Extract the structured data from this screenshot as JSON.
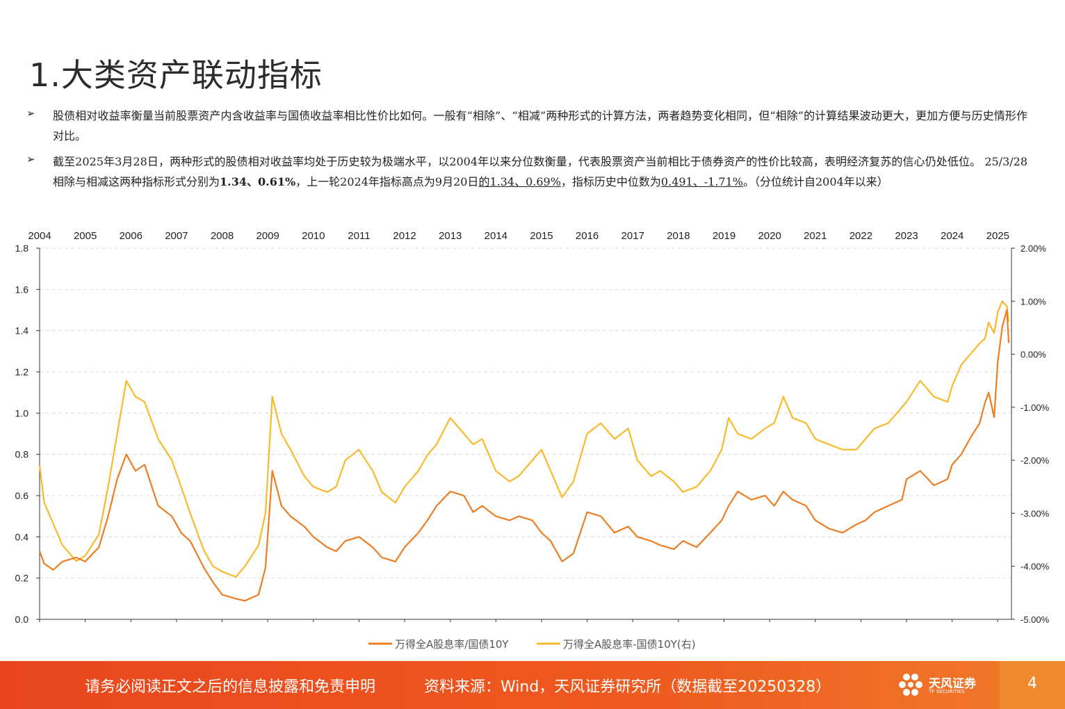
{
  "page": {
    "title": "1.大类资产联动指标",
    "bullets": [
      {
        "segments": [
          {
            "text": "股债相对收益率衡量当前股票资产内含收益率与国债收益率相比性价比如何。一般有“相除”、“相减”两种形式的计算方法，两者趋势变化相同，但“相除”的计算结果波动更大，更加方便与历史情形作对比。",
            "style": "normal"
          }
        ]
      },
      {
        "segments": [
          {
            "text": "截至2025年3月28日，两种形式的股债相对收益率均处于历史较为极端水平，以2004年以来分位数衡量，代表股票资产当前相比于债券资产的性价比较高，表明经济复苏的信心仍处低位。 25/3/28相除与相减这两种指标形式分别为",
            "style": "normal"
          },
          {
            "text": "1.34、0.61%",
            "style": "bold"
          },
          {
            "text": "，上一轮2024年指标高点为9月20日",
            "style": "normal"
          },
          {
            "text": "的1.34、0.69%",
            "style": "underline"
          },
          {
            "text": "，指标历史中位数为",
            "style": "normal"
          },
          {
            "text": "0.491、-1.71%",
            "style": "underline"
          },
          {
            "text": "。（分位统计自2004年以来）",
            "style": "normal"
          }
        ]
      }
    ]
  },
  "chart_data": {
    "type": "line",
    "x_ticks": [
      "2004",
      "2005",
      "2006",
      "2007",
      "2008",
      "2009",
      "2010",
      "2011",
      "2012",
      "2013",
      "2014",
      "2015",
      "2016",
      "2017",
      "2018",
      "2019",
      "2020",
      "2021",
      "2022",
      "2023",
      "2024",
      "2025"
    ],
    "xlim": [
      2004.0,
      2025.3
    ],
    "y_left": {
      "ticks": [
        "0.0",
        "0.2",
        "0.4",
        "0.6",
        "0.8",
        "1.0",
        "1.2",
        "1.4",
        "1.6",
        "1.8"
      ],
      "ylim": [
        0,
        1.8
      ]
    },
    "y_right": {
      "ticks": [
        "2.00%",
        "1.00%",
        "0.00%",
        "-1.00%",
        "-2.00%",
        "-3.00%",
        "-4.00%",
        "-5.00%"
      ],
      "ylim": [
        -5,
        2
      ]
    },
    "grid": "horizontal-dashed",
    "legend_position": "bottom",
    "series": [
      {
        "name": "万得全A股息率/国债10Y",
        "axis": "left",
        "color": "#ee7d22",
        "x": [
          2004.0,
          2004.1,
          2004.3,
          2004.5,
          2004.8,
          2005.0,
          2005.3,
          2005.5,
          2005.7,
          2005.9,
          2006.1,
          2006.3,
          2006.6,
          2006.9,
          2007.1,
          2007.3,
          2007.6,
          2007.8,
          2008.0,
          2008.3,
          2008.5,
          2008.8,
          2008.95,
          2009.1,
          2009.3,
          2009.5,
          2009.8,
          2010.0,
          2010.3,
          2010.5,
          2010.7,
          2011.0,
          2011.3,
          2011.5,
          2011.8,
          2012.0,
          2012.3,
          2012.5,
          2012.7,
          2013.0,
          2013.3,
          2013.5,
          2013.7,
          2014.0,
          2014.3,
          2014.5,
          2014.8,
          2015.0,
          2015.2,
          2015.45,
          2015.7,
          2016.0,
          2016.3,
          2016.6,
          2016.9,
          2017.1,
          2017.4,
          2017.6,
          2017.9,
          2018.1,
          2018.4,
          2018.7,
          2018.95,
          2019.1,
          2019.3,
          2019.6,
          2019.9,
          2020.1,
          2020.3,
          2020.5,
          2020.8,
          2021.0,
          2021.3,
          2021.6,
          2021.9,
          2022.1,
          2022.3,
          2022.6,
          2022.9,
          2023.0,
          2023.3,
          2023.6,
          2023.9,
          2024.0,
          2024.2,
          2024.4,
          2024.6,
          2024.72,
          2024.8,
          2024.92,
          2025.0,
          2025.1,
          2025.2,
          2025.24
        ],
        "values": [
          0.33,
          0.27,
          0.24,
          0.28,
          0.3,
          0.28,
          0.35,
          0.5,
          0.68,
          0.8,
          0.72,
          0.75,
          0.55,
          0.5,
          0.42,
          0.38,
          0.25,
          0.18,
          0.12,
          0.1,
          0.09,
          0.12,
          0.25,
          0.72,
          0.55,
          0.5,
          0.45,
          0.4,
          0.35,
          0.33,
          0.38,
          0.4,
          0.35,
          0.3,
          0.28,
          0.35,
          0.42,
          0.48,
          0.55,
          0.62,
          0.6,
          0.52,
          0.55,
          0.5,
          0.48,
          0.5,
          0.48,
          0.42,
          0.38,
          0.28,
          0.32,
          0.52,
          0.5,
          0.42,
          0.45,
          0.4,
          0.38,
          0.36,
          0.34,
          0.38,
          0.35,
          0.42,
          0.48,
          0.55,
          0.62,
          0.58,
          0.6,
          0.55,
          0.62,
          0.58,
          0.55,
          0.48,
          0.44,
          0.42,
          0.46,
          0.48,
          0.52,
          0.55,
          0.58,
          0.68,
          0.72,
          0.65,
          0.68,
          0.75,
          0.8,
          0.88,
          0.95,
          1.05,
          1.1,
          0.98,
          1.25,
          1.42,
          1.5,
          1.34
        ]
      },
      {
        "name": "万得全A股息率-国债10Y(右)",
        "axis": "right",
        "color": "#fab92c",
        "x": [
          2004.0,
          2004.1,
          2004.3,
          2004.5,
          2004.8,
          2005.0,
          2005.3,
          2005.5,
          2005.7,
          2005.9,
          2006.1,
          2006.3,
          2006.6,
          2006.9,
          2007.1,
          2007.3,
          2007.6,
          2007.8,
          2008.0,
          2008.3,
          2008.5,
          2008.8,
          2008.95,
          2009.1,
          2009.3,
          2009.5,
          2009.8,
          2010.0,
          2010.3,
          2010.5,
          2010.7,
          2011.0,
          2011.3,
          2011.5,
          2011.8,
          2012.0,
          2012.3,
          2012.5,
          2012.7,
          2013.0,
          2013.3,
          2013.5,
          2013.7,
          2014.0,
          2014.3,
          2014.5,
          2014.8,
          2015.0,
          2015.2,
          2015.45,
          2015.7,
          2016.0,
          2016.3,
          2016.6,
          2016.9,
          2017.1,
          2017.4,
          2017.6,
          2017.9,
          2018.1,
          2018.4,
          2018.7,
          2018.95,
          2019.1,
          2019.3,
          2019.6,
          2019.9,
          2020.1,
          2020.3,
          2020.5,
          2020.8,
          2021.0,
          2021.3,
          2021.6,
          2021.9,
          2022.1,
          2022.3,
          2022.6,
          2022.9,
          2023.0,
          2023.3,
          2023.6,
          2023.9,
          2024.0,
          2024.2,
          2024.4,
          2024.6,
          2024.72,
          2024.8,
          2024.92,
          2025.0,
          2025.1,
          2025.2,
          2025.24
        ],
        "values": [
          -2.1,
          -2.8,
          -3.2,
          -3.6,
          -3.9,
          -3.8,
          -3.4,
          -2.5,
          -1.5,
          -0.5,
          -0.8,
          -0.9,
          -1.6,
          -2.0,
          -2.5,
          -3.0,
          -3.7,
          -4.0,
          -4.1,
          -4.2,
          -4.0,
          -3.6,
          -3.0,
          -0.8,
          -1.5,
          -1.8,
          -2.3,
          -2.5,
          -2.6,
          -2.5,
          -2.0,
          -1.8,
          -2.2,
          -2.6,
          -2.8,
          -2.5,
          -2.2,
          -1.9,
          -1.7,
          -1.2,
          -1.5,
          -1.7,
          -1.6,
          -2.2,
          -2.4,
          -2.3,
          -2.0,
          -1.8,
          -2.2,
          -2.7,
          -2.4,
          -1.5,
          -1.3,
          -1.6,
          -1.4,
          -2.0,
          -2.3,
          -2.2,
          -2.4,
          -2.6,
          -2.5,
          -2.2,
          -1.8,
          -1.2,
          -1.5,
          -1.6,
          -1.4,
          -1.3,
          -0.8,
          -1.2,
          -1.3,
          -1.6,
          -1.7,
          -1.8,
          -1.8,
          -1.6,
          -1.4,
          -1.3,
          -1.0,
          -0.9,
          -0.5,
          -0.8,
          -0.9,
          -0.6,
          -0.2,
          0.0,
          0.2,
          0.3,
          0.6,
          0.4,
          0.8,
          1.0,
          0.9,
          0.61
        ]
      }
    ]
  },
  "footer": {
    "disclaimer": "请务必阅读正文之后的信息披露和免责申明",
    "source": "资料来源：Wind，天风证券研究所（数据截至20250328）",
    "logo_cn": "天风证券",
    "logo_en": "TF SECURITIES",
    "page_number": "4",
    "logo_icon": "tf-flower-logo-icon"
  }
}
